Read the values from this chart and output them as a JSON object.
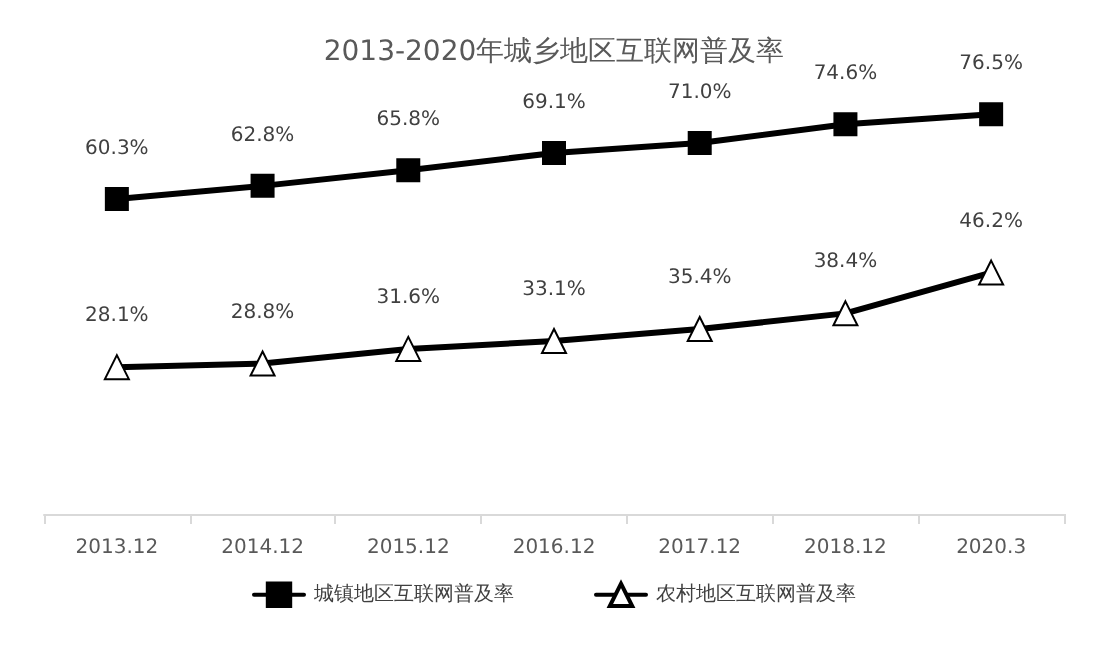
{
  "chart_data": {
    "type": "line",
    "title": "2013-2020年城乡地区互联网普及率",
    "categories": [
      "2013.12",
      "2014.12",
      "2015.12",
      "2016.12",
      "2017.12",
      "2018.12",
      "2020.3"
    ],
    "series": [
      {
        "name": "城镇地区互联网普及率",
        "color": "#000000",
        "marker": "square",
        "values": [
          60.3,
          62.8,
          65.8,
          69.1,
          71.0,
          74.6,
          76.5
        ],
        "value_labels": [
          "60.3%",
          "62.8%",
          "65.8%",
          "69.1%",
          "71.0%",
          "74.6%",
          "76.5%"
        ]
      },
      {
        "name": "农村地区互联网普及率",
        "color": "#000000",
        "marker": "triangle",
        "values": [
          28.1,
          28.8,
          31.6,
          33.1,
          35.4,
          38.4,
          46.2
        ],
        "value_labels": [
          "28.1%",
          "28.8%",
          "31.6%",
          "33.1%",
          "35.4%",
          "38.4%",
          "46.2%"
        ]
      }
    ],
    "tick_labels": "x",
    "grid": false,
    "legend": "bottom",
    "line_style": "solid"
  }
}
